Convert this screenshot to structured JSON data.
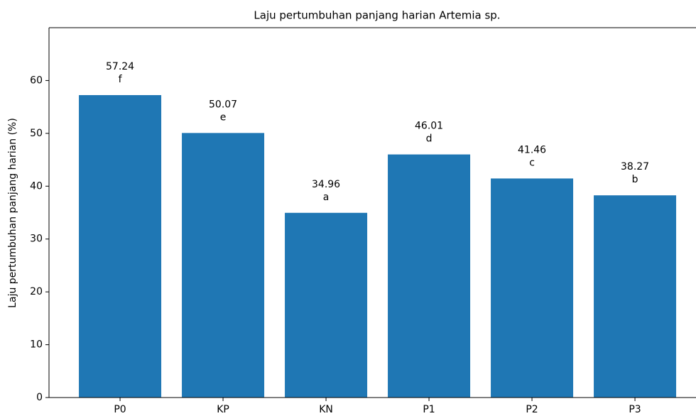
{
  "chart_data": {
    "type": "bar",
    "title": "Laju pertumbuhan panjang harian Artemia sp.",
    "y_label": "Laju pertumbuhan panjang harian (%)",
    "categories": [
      "P0",
      "KP",
      "KN",
      "P1",
      "P2",
      "P3"
    ],
    "values": [
      57.24,
      50.07,
      34.96,
      46.01,
      41.46,
      38.27
    ],
    "labels": [
      "f",
      "e",
      "a",
      "d",
      "c",
      "b"
    ],
    "color": "#1f77b4",
    "ylim": [
      0,
      70
    ],
    "yticks": [
      0,
      10,
      20,
      30,
      40,
      50,
      60
    ],
    "grid": false
  }
}
